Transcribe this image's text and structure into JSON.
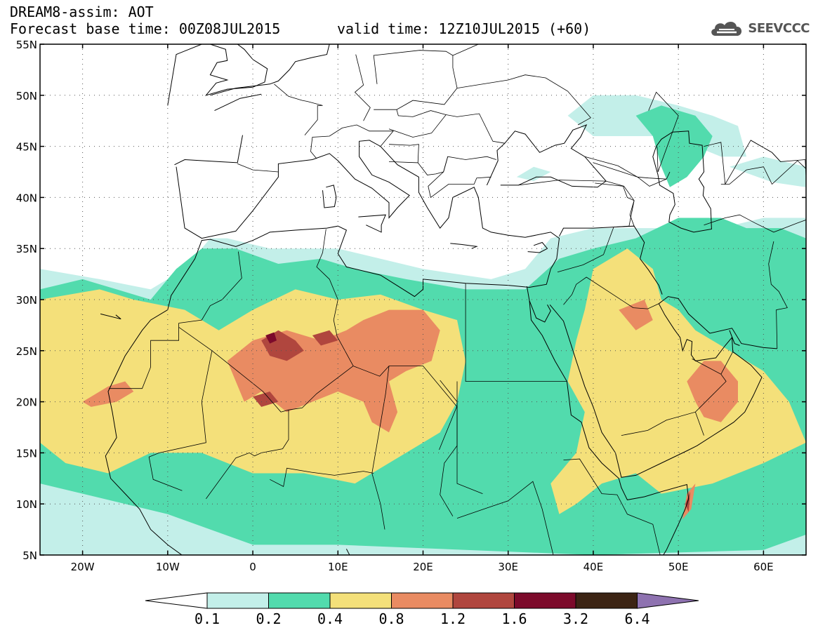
{
  "header": {
    "title": "DREAM8-assim: AOT",
    "base_time": "Forecast base time: 00Z08JUL2015",
    "valid_time": "valid time: 12Z10JUL2015 (+60)"
  },
  "logo": {
    "text": "SEEVCCC",
    "icon": "cloud-icon"
  },
  "map": {
    "variable": "AOT",
    "region": "North Africa / Middle East",
    "lon_range": [
      -25,
      65
    ],
    "lat_range": [
      5,
      55
    ],
    "lon_ticks": [
      {
        "v": -20,
        "label": "20W"
      },
      {
        "v": -10,
        "label": "10W"
      },
      {
        "v": 0,
        "label": "0"
      },
      {
        "v": 10,
        "label": "10E"
      },
      {
        "v": 20,
        "label": "20E"
      },
      {
        "v": 30,
        "label": "30E"
      },
      {
        "v": 40,
        "label": "40E"
      },
      {
        "v": 50,
        "label": "50E"
      },
      {
        "v": 60,
        "label": "60E"
      }
    ],
    "lat_ticks": [
      {
        "v": 55,
        "label": "55N"
      },
      {
        "v": 50,
        "label": "50N"
      },
      {
        "v": 45,
        "label": "45N"
      },
      {
        "v": 40,
        "label": "40N"
      },
      {
        "v": 35,
        "label": "35N"
      },
      {
        "v": 30,
        "label": "30N"
      },
      {
        "v": 25,
        "label": "25N"
      },
      {
        "v": 20,
        "label": "20N"
      },
      {
        "v": 15,
        "label": "15N"
      },
      {
        "v": 10,
        "label": "10N"
      },
      {
        "v": 5,
        "label": "5N"
      }
    ],
    "grid": "dotted"
  },
  "colorbar": {
    "labels": [
      "0.1",
      "0.2",
      "0.4",
      "0.8",
      "1.2",
      "1.6",
      "3.2",
      "6.4"
    ],
    "colors": [
      "#ffffff",
      "#c3efe9",
      "#52dbad",
      "#f4e07a",
      "#e98b62",
      "#b0463e",
      "#7c0a2b",
      "#3c2414",
      "#8e72b0"
    ]
  },
  "fields": [
    {
      "name": "aot-0.1-0.2",
      "color": "#c3efe9",
      "areas": [
        [
          [
            -25,
            33
          ],
          [
            -18,
            32
          ],
          [
            -12,
            31
          ],
          [
            -8,
            33
          ],
          [
            -5,
            36
          ],
          [
            -3,
            36
          ],
          [
            2,
            35
          ],
          [
            10,
            35
          ],
          [
            20,
            33
          ],
          [
            28,
            32
          ],
          [
            32,
            33
          ],
          [
            35,
            36
          ],
          [
            40,
            37
          ],
          [
            48,
            37
          ],
          [
            55,
            37
          ],
          [
            60,
            38
          ],
          [
            65,
            38
          ],
          [
            65,
            5
          ],
          [
            -25,
            5
          ]
        ],
        [
          [
            37,
            48
          ],
          [
            40,
            50
          ],
          [
            45,
            50
          ],
          [
            50,
            49
          ],
          [
            54,
            48
          ],
          [
            57,
            47
          ],
          [
            58,
            44
          ],
          [
            55,
            44
          ],
          [
            52,
            45
          ],
          [
            48,
            46
          ],
          [
            43,
            46
          ],
          [
            40,
            46
          ]
        ],
        [
          [
            31,
            42
          ],
          [
            33,
            43
          ],
          [
            35,
            42.5
          ],
          [
            33,
            41.6
          ]
        ],
        [
          [
            56,
            43
          ],
          [
            60,
            44
          ],
          [
            65,
            43
          ],
          [
            65,
            41
          ],
          [
            61,
            41.5
          ]
        ]
      ]
    },
    {
      "name": "aot-0.2-0.4",
      "color": "#52dbad",
      "areas": [
        [
          [
            -25,
            31
          ],
          [
            -20,
            32
          ],
          [
            -16,
            31
          ],
          [
            -12,
            30
          ],
          [
            -9,
            33
          ],
          [
            -6,
            35
          ],
          [
            -2,
            35
          ],
          [
            3,
            33.5
          ],
          [
            8,
            34
          ],
          [
            12,
            33
          ],
          [
            18,
            32
          ],
          [
            25,
            31
          ],
          [
            32,
            31
          ],
          [
            36,
            34
          ],
          [
            40,
            35
          ],
          [
            45,
            36
          ],
          [
            50,
            38
          ],
          [
            55,
            38
          ],
          [
            58,
            37
          ],
          [
            62,
            37
          ],
          [
            65,
            36
          ],
          [
            65,
            7
          ],
          [
            60,
            5.5
          ],
          [
            40,
            5
          ],
          [
            10,
            6
          ],
          [
            0,
            6
          ],
          [
            -10,
            9
          ],
          [
            -20,
            11
          ],
          [
            -25,
            12
          ]
        ],
        [
          [
            45,
            48
          ],
          [
            48,
            49
          ],
          [
            52,
            48
          ],
          [
            54,
            46
          ],
          [
            53,
            44
          ],
          [
            51,
            42
          ],
          [
            49,
            41
          ],
          [
            48,
            43
          ],
          [
            47,
            46
          ]
        ]
      ]
    },
    {
      "name": "aot-0.4-0.8",
      "color": "#f4e07a",
      "areas": [
        [
          [
            -25,
            30
          ],
          [
            -18,
            31
          ],
          [
            -14,
            30
          ],
          [
            -8,
            29
          ],
          [
            -4,
            27
          ],
          [
            0,
            29
          ],
          [
            5,
            31
          ],
          [
            10,
            30
          ],
          [
            15,
            30.5
          ],
          [
            20,
            29
          ],
          [
            24,
            28
          ],
          [
            25,
            24
          ],
          [
            24,
            20
          ],
          [
            22,
            17
          ],
          [
            18,
            15
          ],
          [
            12,
            12
          ],
          [
            6,
            13
          ],
          [
            0,
            13
          ],
          [
            -6,
            15
          ],
          [
            -12,
            15
          ],
          [
            -17,
            13
          ],
          [
            -22,
            14
          ],
          [
            -25,
            16
          ]
        ],
        [
          [
            40,
            33
          ],
          [
            44,
            35
          ],
          [
            47,
            33
          ],
          [
            48,
            30
          ],
          [
            50,
            29
          ],
          [
            52,
            27
          ],
          [
            56,
            25
          ],
          [
            60,
            23
          ],
          [
            63,
            20
          ],
          [
            65,
            16
          ],
          [
            60,
            14
          ],
          [
            54,
            12
          ],
          [
            48,
            11
          ],
          [
            45,
            13
          ],
          [
            41,
            12
          ],
          [
            38,
            10
          ],
          [
            36,
            9
          ],
          [
            35,
            12
          ],
          [
            38,
            15
          ],
          [
            39,
            19
          ],
          [
            37,
            22
          ],
          [
            38,
            26
          ],
          [
            39,
            29
          ]
        ],
        [
          [
            -25,
            27
          ],
          [
            -20,
            27
          ],
          [
            -16,
            28
          ],
          [
            -14,
            26
          ],
          [
            -15,
            22
          ],
          [
            -18,
            21
          ],
          [
            -21,
            22
          ],
          [
            -25,
            23
          ]
        ]
      ]
    },
    {
      "name": "aot-0.8-1.2",
      "color": "#e98b62",
      "areas": [
        [
          [
            -3,
            24
          ],
          [
            0,
            26
          ],
          [
            4,
            27
          ],
          [
            8,
            26
          ],
          [
            11,
            27
          ],
          [
            13,
            28
          ],
          [
            16,
            29
          ],
          [
            20,
            29
          ],
          [
            22,
            27
          ],
          [
            21,
            24
          ],
          [
            18,
            23
          ],
          [
            16,
            22
          ],
          [
            17,
            19
          ],
          [
            16,
            17
          ],
          [
            14,
            18
          ],
          [
            13,
            20
          ],
          [
            10,
            21
          ],
          [
            7,
            20
          ],
          [
            4,
            19
          ],
          [
            1,
            21
          ],
          [
            -1,
            20
          ],
          [
            -2,
            22
          ]
        ],
        [
          [
            -20,
            20
          ],
          [
            -17,
            21.5
          ],
          [
            -15,
            22
          ],
          [
            -14,
            21
          ],
          [
            -16,
            20
          ],
          [
            -19,
            19.5
          ]
        ],
        [
          [
            51,
            22
          ],
          [
            53,
            24
          ],
          [
            55,
            24
          ],
          [
            57,
            22
          ],
          [
            57,
            20
          ],
          [
            55,
            18
          ],
          [
            53,
            18.5
          ],
          [
            52,
            20
          ]
        ],
        [
          [
            43,
            29
          ],
          [
            46,
            30
          ],
          [
            47,
            28
          ],
          [
            45,
            27
          ]
        ],
        [
          [
            51,
            11
          ],
          [
            52,
            12
          ],
          [
            51.5,
            9.5
          ],
          [
            50.5,
            8.5
          ]
        ]
      ]
    },
    {
      "name": "aot-1.2-1.6",
      "color": "#b0463e",
      "areas": [
        [
          [
            1,
            26
          ],
          [
            3,
            27
          ],
          [
            5,
            26
          ],
          [
            6,
            25
          ],
          [
            4,
            24
          ],
          [
            2,
            24.5
          ]
        ],
        [
          [
            7,
            26.5
          ],
          [
            9,
            27
          ],
          [
            10,
            26
          ],
          [
            8,
            25.5
          ]
        ],
        [
          [
            0,
            20.5
          ],
          [
            2,
            21
          ],
          [
            3,
            20
          ],
          [
            1,
            19.5
          ]
        ],
        [
          [
            50.8,
            10
          ],
          [
            51.4,
            11.2
          ],
          [
            51.2,
            9.2
          ]
        ]
      ]
    },
    {
      "name": "aot-1.6-3.2",
      "color": "#7c0a2b",
      "areas": [
        [
          [
            1.5,
            26.5
          ],
          [
            2.5,
            26.8
          ],
          [
            2.8,
            26
          ],
          [
            2,
            25.7
          ]
        ]
      ]
    }
  ]
}
